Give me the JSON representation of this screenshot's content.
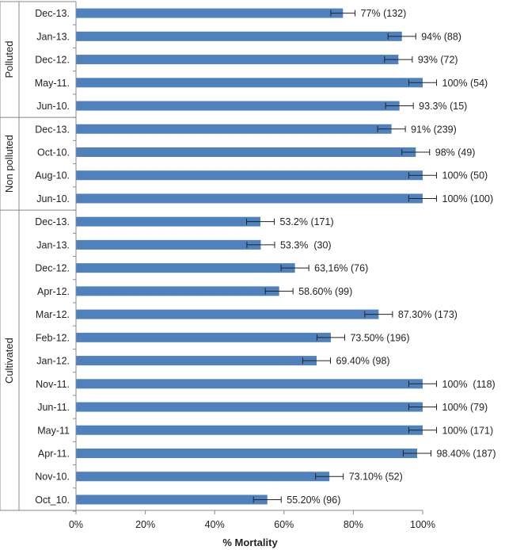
{
  "chart_data": {
    "type": "bar",
    "orientation": "horizontal",
    "xlabel": "% Mortality",
    "xlim": [
      0,
      100
    ],
    "xticks": [
      0,
      20,
      40,
      60,
      80,
      100
    ],
    "xtick_labels": [
      "0%",
      "20%",
      "40%",
      "60%",
      "80%",
      "100%"
    ],
    "bar_color": "#4f81bd",
    "groups": [
      {
        "name": "Polluted",
        "items": [
          {
            "category": "Dec-13.",
            "value": 77,
            "error": 3.5,
            "label": "77% (132)"
          },
          {
            "category": "Jan-13.",
            "value": 94,
            "error": 4,
            "label": "94% (88)"
          },
          {
            "category": "Dec-12.",
            "value": 93,
            "error": 4,
            "label": "93% (72)"
          },
          {
            "category": "May-11.",
            "value": 100,
            "error": 4,
            "label": "100% (54)"
          },
          {
            "category": "Jun-10.",
            "value": 93.3,
            "error": 4,
            "label": "93.3% (15)"
          }
        ]
      },
      {
        "name": "Non polluted",
        "items": [
          {
            "category": "Dec-13.",
            "value": 91,
            "error": 4,
            "label": "91% (239)"
          },
          {
            "category": "Oct-10.",
            "value": 98,
            "error": 4,
            "label": "98% (49)"
          },
          {
            "category": "Aug-10.",
            "value": 100,
            "error": 4,
            "label": "100% (50)"
          },
          {
            "category": "Jun-10.",
            "value": 100,
            "error": 4,
            "label": "100% (100)"
          }
        ]
      },
      {
        "name": "Cultivated",
        "items": [
          {
            "category": "Dec-13.",
            "value": 53.2,
            "error": 4,
            "label": "53.2% (171)"
          },
          {
            "category": "Jan-13.",
            "value": 53.3,
            "error": 4,
            "label": "53.3%  (30)"
          },
          {
            "category": "Dec-12.",
            "value": 63.16,
            "error": 4,
            "label": "63,16% (76)"
          },
          {
            "category": "Apr-12.",
            "value": 58.6,
            "error": 4,
            "label": "58.60% (99)"
          },
          {
            "category": "Mar-12.",
            "value": 87.3,
            "error": 4,
            "label": "87.30% (173)"
          },
          {
            "category": "Feb-12.",
            "value": 73.5,
            "error": 4,
            "label": "73.50% (196)"
          },
          {
            "category": "Jan-12.",
            "value": 69.4,
            "error": 4,
            "label": "69.40% (98)"
          },
          {
            "category": "Nov-11.",
            "value": 100,
            "error": 4,
            "label": "100%  (118)"
          },
          {
            "category": "Jun-11.",
            "value": 100,
            "error": 4,
            "label": "100% (79)"
          },
          {
            "category": "May-11",
            "value": 100,
            "error": 4,
            "label": "100% (171)"
          },
          {
            "category": "Apr-11.",
            "value": 98.4,
            "error": 4,
            "label": "98.40% (187)"
          },
          {
            "category": "Nov-10.",
            "value": 73.1,
            "error": 4,
            "label": "73.10% (52)"
          },
          {
            "category": "Oct_10.",
            "value": 55.2,
            "error": 4,
            "label": "55.20% (96)"
          }
        ]
      }
    ]
  }
}
